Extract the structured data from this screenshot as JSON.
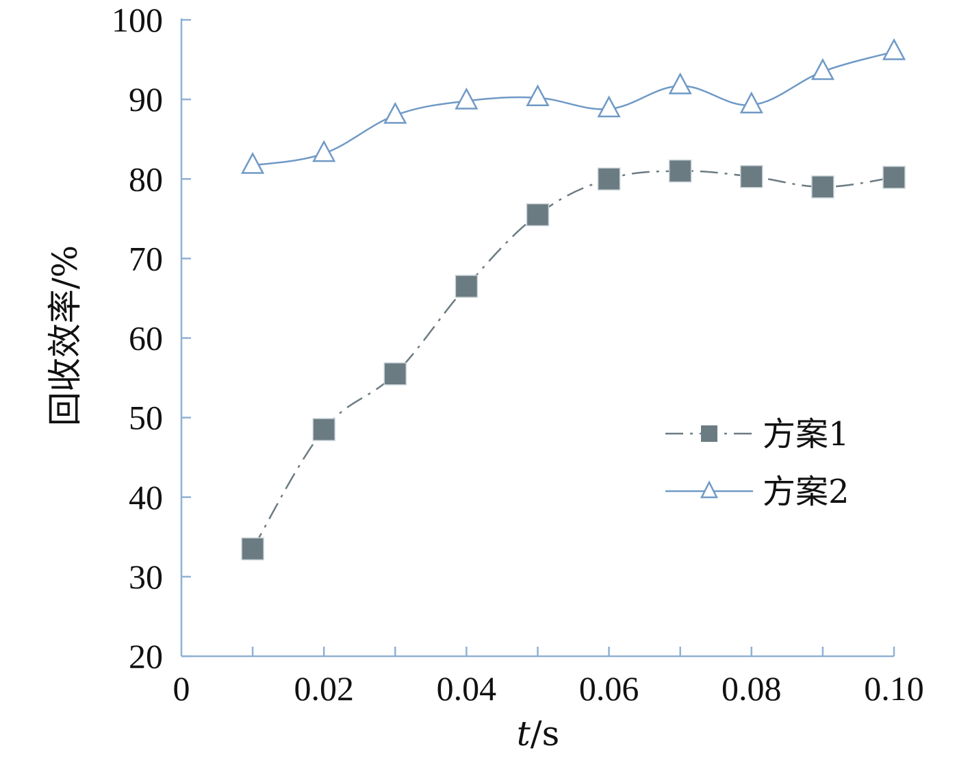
{
  "chart_data": {
    "type": "line",
    "title": "",
    "xlabel_italic": "t",
    "xlabel_rest": "/s",
    "ylabel": "回收效率/%",
    "xlim": [
      0,
      0.1
    ],
    "ylim": [
      20,
      100
    ],
    "x_ticks": [
      {
        "value": 0,
        "label": "0"
      },
      {
        "value": 0.02,
        "label": "0.02"
      },
      {
        "value": 0.04,
        "label": "0.04"
      },
      {
        "value": 0.06,
        "label": "0.06"
      },
      {
        "value": 0.08,
        "label": "0.08"
      },
      {
        "value": 0.1,
        "label": "0.10"
      }
    ],
    "x_minor_ticks": [
      0.01,
      0.02,
      0.03,
      0.04,
      0.05,
      0.06,
      0.07,
      0.08,
      0.09,
      0.1
    ],
    "y_ticks": [
      {
        "value": 20,
        "label": "20"
      },
      {
        "value": 30,
        "label": "30"
      },
      {
        "value": 40,
        "label": "40"
      },
      {
        "value": 50,
        "label": "50"
      },
      {
        "value": 60,
        "label": "60"
      },
      {
        "value": 70,
        "label": "70"
      },
      {
        "value": 80,
        "label": "80"
      },
      {
        "value": 90,
        "label": "90"
      },
      {
        "value": 100,
        "label": "100"
      }
    ],
    "x": [
      0.01,
      0.02,
      0.03,
      0.04,
      0.05,
      0.06,
      0.07,
      0.08,
      0.09,
      0.1
    ],
    "series": [
      {
        "name": "方案1",
        "marker": "square",
        "line_style": "dash-dot",
        "color": "#6b7b82",
        "values": [
          33.5,
          48.5,
          55.5,
          66.5,
          75.5,
          80.0,
          81.0,
          80.3,
          79.0,
          80.2
        ]
      },
      {
        "name": "方案2",
        "marker": "triangle",
        "line_style": "solid",
        "color": "#6f99c6",
        "values": [
          81.7,
          83.2,
          88.0,
          89.8,
          90.2,
          88.8,
          91.7,
          89.3,
          93.5,
          96.0
        ]
      }
    ],
    "grid": false,
    "legend_position": "right-middle",
    "axis_color": "#8fb1d4"
  }
}
